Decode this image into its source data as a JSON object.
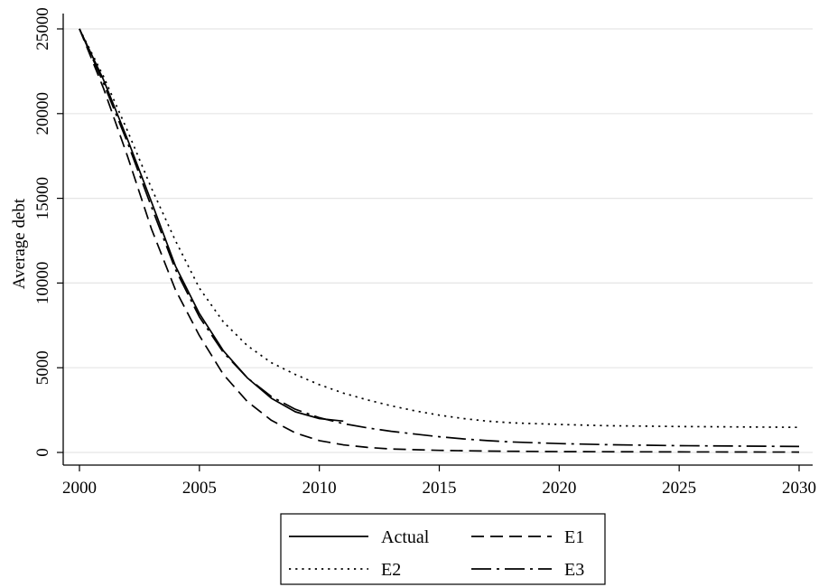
{
  "chart_data": {
    "type": "line",
    "title": "",
    "xlabel": "",
    "ylabel": "Average debt",
    "xlim": [
      2000,
      2030
    ],
    "ylim": [
      0,
      25000
    ],
    "x_ticks": [
      "2000",
      "2005",
      "2010",
      "2015",
      "2020",
      "2025",
      "2030"
    ],
    "y_ticks": [
      "0",
      "5000",
      "10000",
      "15000",
      "20000",
      "25000"
    ],
    "grid": true,
    "legend_position": "bottom",
    "series": [
      {
        "name": "Actual",
        "style": "solid",
        "color": "#000000",
        "x": [
          2000,
          2001,
          2002,
          2003,
          2004,
          2005,
          2006,
          2007,
          2008,
          2009,
          2010,
          2011
        ],
        "y": [
          25000,
          22000,
          18500,
          14800,
          11000,
          8200,
          6000,
          4400,
          3200,
          2400,
          2000,
          1850
        ]
      },
      {
        "name": "E1",
        "style": "dashed",
        "color": "#000000",
        "x": [
          2000,
          2001,
          2002,
          2003,
          2004,
          2005,
          2006,
          2007,
          2008,
          2009,
          2010,
          2011,
          2012,
          2013,
          2015,
          2017,
          2020,
          2025,
          2030
        ],
        "y": [
          25000,
          21500,
          17500,
          13200,
          9600,
          6900,
          4600,
          3000,
          1900,
          1150,
          700,
          450,
          300,
          200,
          120,
          80,
          50,
          30,
          20
        ]
      },
      {
        "name": "E2",
        "style": "dotted",
        "color": "#000000",
        "x": [
          2000,
          2001,
          2002,
          2003,
          2004,
          2005,
          2006,
          2007,
          2008,
          2009,
          2010,
          2011,
          2012,
          2013,
          2014,
          2015,
          2016,
          2017,
          2018,
          2020,
          2022,
          2025,
          2030
        ],
        "y": [
          25000,
          22200,
          19000,
          15600,
          12500,
          9700,
          7700,
          6300,
          5300,
          4600,
          4000,
          3500,
          3100,
          2750,
          2450,
          2200,
          2000,
          1850,
          1750,
          1650,
          1580,
          1530,
          1480
        ]
      },
      {
        "name": "E3",
        "style": "dashdot",
        "color": "#000000",
        "x": [
          2000,
          2001,
          2002,
          2003,
          2004,
          2005,
          2006,
          2007,
          2008,
          2009,
          2010,
          2011,
          2012,
          2013,
          2014,
          2015,
          2016,
          2017,
          2018,
          2020,
          2022,
          2025,
          2030
        ],
        "y": [
          25000,
          21800,
          18300,
          14500,
          10800,
          8000,
          5900,
          4400,
          3300,
          2550,
          2050,
          1700,
          1450,
          1250,
          1080,
          930,
          800,
          700,
          620,
          520,
          460,
          400,
          350
        ]
      }
    ]
  }
}
